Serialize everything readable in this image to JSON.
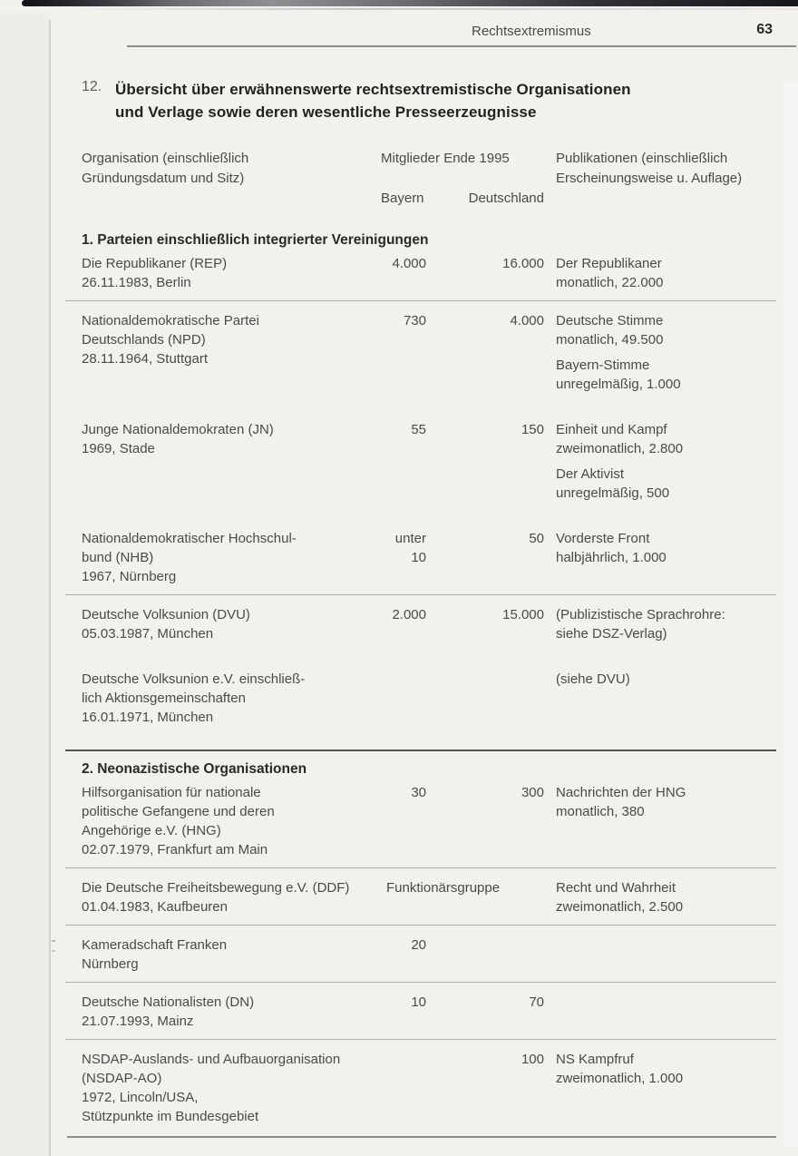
{
  "header": {
    "section": "Rechtsextremismus",
    "page_number": "63"
  },
  "title": {
    "number": "12.",
    "lines": [
      "Übersicht über erwähnenswerte rechtsextremistische Organisationen",
      "und Verlage sowie deren wesentliche Presseerzeugnisse"
    ]
  },
  "table": {
    "col_org": [
      "Organisation (einschließlich",
      "Gründungsdatum und Sitz)"
    ],
    "col_members": "Mitglieder Ende 1995",
    "col_members_sub": [
      "Bayern",
      "Deutschland"
    ],
    "col_pubs": [
      "Publikationen (einschließlich",
      "Erscheinungsweise u. Auflage)"
    ],
    "sections": [
      {
        "heading": "1. Parteien einschließlich integrierter Vereinigungen",
        "heading_rule": false,
        "rows": [
          {
            "org": [
              "Die Republikaner (REP)",
              "26.11.1983, Berlin"
            ],
            "bayern": [
              "4.000"
            ],
            "deutschland": "16.000",
            "pubs": [
              [
                "Der Republikaner",
                "monatlich, 22.000"
              ]
            ],
            "rule": false
          },
          {
            "org": [
              "Nationaldemokratische Partei",
              "Deutschlands (NPD)",
              "28.11.1964, Stuttgart"
            ],
            "bayern": [
              "730"
            ],
            "deutschland": "4.000",
            "pubs": [
              [
                "Deutsche Stimme",
                "monatlich, 49.500"
              ],
              [
                "Bayern-Stimme",
                "unregelmäßig, 1.000"
              ]
            ],
            "rule": true
          },
          {
            "org": [
              "Junge Nationaldemokraten (JN)",
              "1969, Stade"
            ],
            "bayern": [
              "55"
            ],
            "deutschland": "150",
            "pubs": [
              [
                "Einheit und Kampf",
                "zweimonatlich, 2.800"
              ],
              [
                "Der Aktivist",
                "unregelmäßig, 500"
              ]
            ],
            "rule": false
          },
          {
            "org": [
              "Nationaldemokratischer Hochschul-",
              "bund (NHB)",
              "1967, Nürnberg"
            ],
            "bayern": [
              "unter",
              "10"
            ],
            "deutschland": "50",
            "pubs": [
              [
                "Vorderste Front",
                "halbjährlich, 1.000"
              ]
            ],
            "rule": false
          },
          {
            "org": [
              "Deutsche Volksunion (DVU)",
              "05.03.1987, München"
            ],
            "bayern": [
              "2.000"
            ],
            "deutschland": "15.000",
            "pubs": [
              [
                "(Publizistische Sprachrohre:",
                "siehe DSZ-Verlag)"
              ]
            ],
            "rule": true
          },
          {
            "org": [
              "Deutsche Volksunion e.V. einschließ-",
              "lich Aktionsgemeinschaften",
              "16.01.1971, München"
            ],
            "bayern": [],
            "deutschland": "",
            "pubs": [
              [
                "(siehe DVU)"
              ]
            ],
            "rule": false
          }
        ]
      },
      {
        "heading": "2. Neonazistische Organisationen",
        "heading_rule": true,
        "rows": [
          {
            "org": [
              "Hilfsorganisation für nationale",
              "politische Gefangene und deren",
              "Angehörige e.V. (HNG)",
              "02.07.1979, Frankfurt am Main"
            ],
            "bayern": [
              "30"
            ],
            "deutschland": "300",
            "pubs": [
              [
                "Nachrichten der HNG",
                "monatlich, 380"
              ]
            ],
            "rule": false
          },
          {
            "org": [
              "Die Deutsche Freiheitsbewegung e.V. (DDF)",
              "01.04.1983, Kaufbeuren"
            ],
            "members_span": "Funktionärsgruppe",
            "bayern": [],
            "deutschland": "",
            "pubs": [
              [
                "Recht und Wahrheit",
                "zweimonatlich, 2.500"
              ]
            ],
            "rule": true
          },
          {
            "org": [
              "Kameradschaft Franken",
              "Nürnberg"
            ],
            "bayern": [
              "20"
            ],
            "deutschland": "",
            "pubs": [],
            "rule": true
          },
          {
            "org": [
              "Deutsche Nationalisten (DN)",
              "21.07.1993, Mainz"
            ],
            "bayern": [
              "10"
            ],
            "deutschland": "70",
            "pubs": [],
            "rule": true
          },
          {
            "org": [
              "NSDAP-Auslands- und Aufbauorganisation",
              "(NSDAP-AO)",
              "1972, Lincoln/USA,",
              "Stützpunkte im Bundesgebiet"
            ],
            "bayern": [],
            "deutschland": "100",
            "pubs": [
              [
                "NS Kampfruf",
                "zweimonatlich, 1.000"
              ]
            ],
            "rule": true
          }
        ]
      }
    ]
  }
}
